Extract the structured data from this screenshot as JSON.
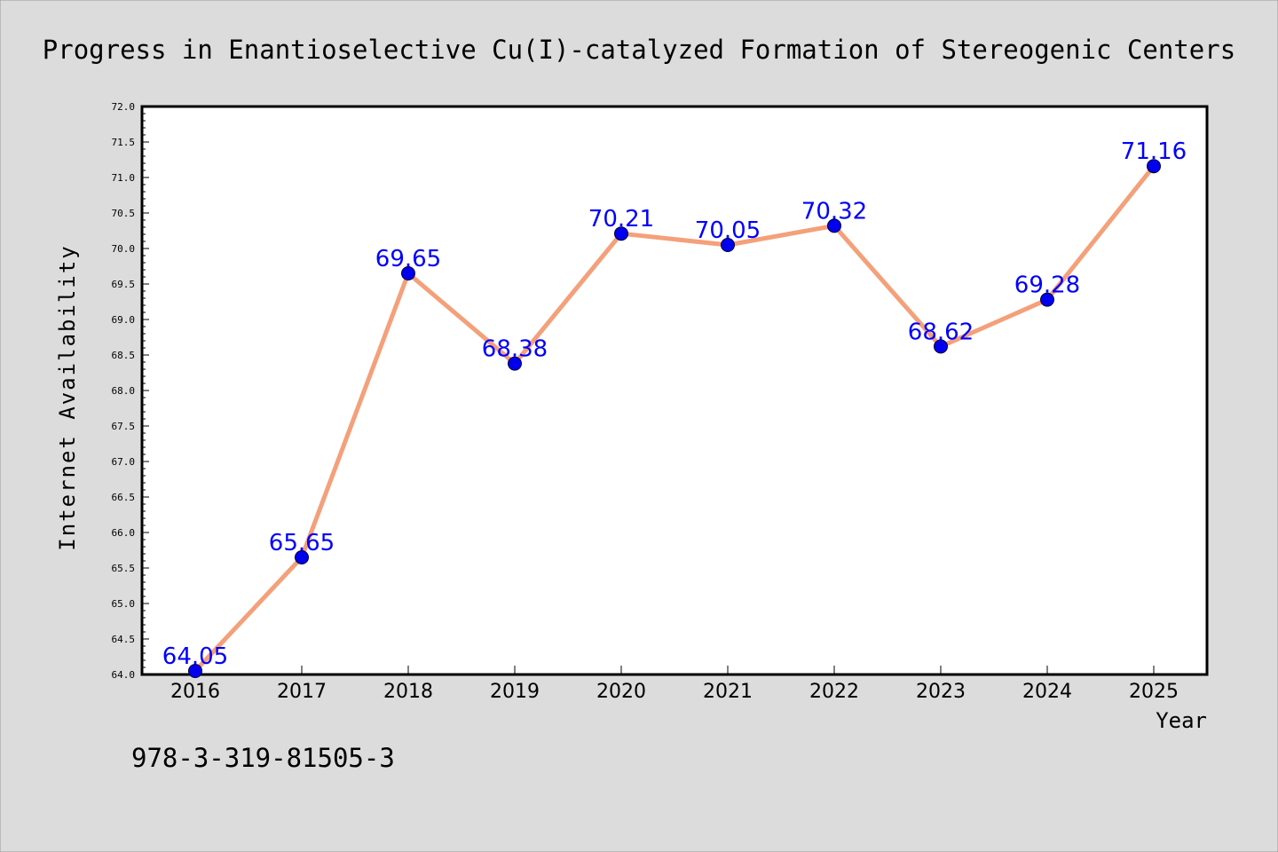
{
  "chart_data": {
    "type": "line",
    "title": "Progress in Enantioselective Cu(I)-catalyzed Formation of Stereogenic Centers",
    "xlabel": "Year",
    "ylabel": "Internet Availability",
    "categories": [
      "2016",
      "2017",
      "2018",
      "2019",
      "2020",
      "2021",
      "2022",
      "2023",
      "2024",
      "2025"
    ],
    "values": [
      64.05,
      65.65,
      69.65,
      68.38,
      70.21,
      70.05,
      70.32,
      68.62,
      69.28,
      71.16
    ],
    "data_labels": [
      "64.05",
      "65.65",
      "69.65",
      "68.38",
      "70.21",
      "70.05",
      "70.32",
      "68.62",
      "69.28",
      "71.16"
    ],
    "ylim": [
      64.0,
      72.0
    ],
    "yticks": [
      "64.0",
      "64.5",
      "65.0",
      "65.5",
      "66.0",
      "66.5",
      "67.0",
      "67.5",
      "68.0",
      "68.5",
      "69.0",
      "69.5",
      "70.0",
      "70.5",
      "71.0",
      "71.5",
      "72.0"
    ],
    "grid": false,
    "legend": "none",
    "colors": {
      "line": "#f4a07a",
      "marker": "#0000ee",
      "data_label": "#0000ff",
      "background": "#dcdcdc",
      "plot_background": "#ffffff"
    }
  },
  "footer": {
    "isbn": "978-3-319-81505-3"
  }
}
